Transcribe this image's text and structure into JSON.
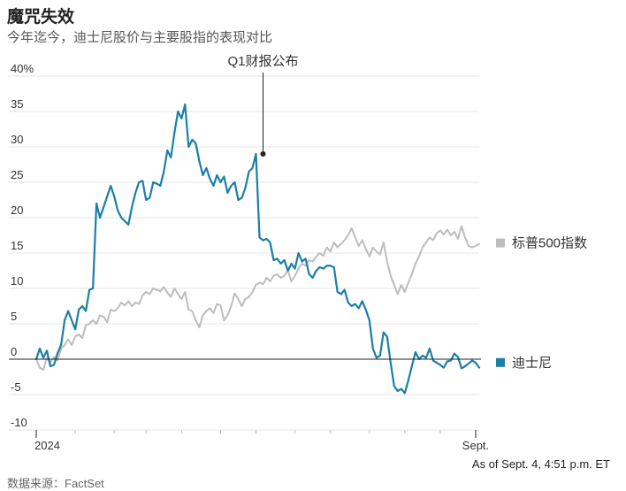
{
  "header": {
    "title": "魔咒失效",
    "subtitle": "今年迄今，迪士尼股价与主要股指的表现对比"
  },
  "footer": {
    "source": "数据来源：FactSet",
    "timestamp": "As of Sept. 4, 4:51 p.m. ET"
  },
  "colors": {
    "disney": "#1b7fa6",
    "sp500": "#bdbdbd",
    "grid": "#e4e4e4",
    "zero": "#222222",
    "annotation": "#222222"
  },
  "chart_data": {
    "type": "line",
    "y_ticks": [
      "40%",
      "35",
      "30",
      "25",
      "20",
      "15",
      "10",
      "5",
      "0",
      "-5",
      "-10"
    ],
    "y_tick_values": [
      40,
      35,
      30,
      25,
      20,
      15,
      10,
      5,
      0,
      -5,
      -10
    ],
    "ylim": [
      -10,
      40
    ],
    "x_tick_labels": [
      "2024",
      "Sept."
    ],
    "x_tick_positions": [
      0,
      124
    ],
    "x_range": [
      0,
      125
    ],
    "grid": true,
    "annotation": {
      "text": "Q1财报公布",
      "x": 64,
      "y": 29
    },
    "series": [
      {
        "name": "标普500指数",
        "legend_label": "标普500指数",
        "color": "#bdbdbd",
        "x": [
          0,
          1,
          2,
          3,
          4,
          5,
          6,
          7,
          8,
          9,
          10,
          11,
          12,
          13,
          14,
          15,
          16,
          17,
          18,
          19,
          20,
          21,
          22,
          23,
          24,
          25,
          26,
          27,
          28,
          29,
          30,
          31,
          32,
          33,
          34,
          35,
          36,
          37,
          38,
          39,
          40,
          41,
          42,
          43,
          44,
          45,
          46,
          47,
          48,
          49,
          50,
          51,
          52,
          53,
          54,
          55,
          56,
          57,
          58,
          59,
          60,
          61,
          62,
          63,
          64,
          65,
          66,
          67,
          68,
          69,
          70,
          71,
          72,
          73,
          74,
          75,
          76,
          77,
          78,
          79,
          80,
          81,
          82,
          83,
          84,
          85,
          86,
          87,
          88,
          89,
          90,
          91,
          92,
          93,
          94,
          95,
          96,
          97,
          98,
          99,
          100,
          101,
          102,
          103,
          104,
          105,
          106,
          107,
          108,
          109,
          110,
          111,
          112,
          113,
          114,
          115,
          116,
          117,
          118,
          119,
          120,
          121,
          122,
          123,
          124,
          125
        ],
        "values": [
          0,
          -1.2,
          -1.5,
          0.2,
          -0.5,
          0.3,
          -0.2,
          1.5,
          2,
          2.8,
          2,
          3.2,
          3.5,
          3,
          4.8,
          5,
          5.5,
          5,
          6.2,
          6,
          5.2,
          7,
          6.8,
          7.2,
          8,
          7.6,
          8.2,
          7.5,
          8,
          7.8,
          9,
          9.5,
          9.2,
          10,
          9.8,
          9.6,
          10.2,
          9.4,
          8.8,
          10,
          9.2,
          8.5,
          9.5,
          7,
          6.8,
          5.5,
          4.5,
          6.2,
          6.8,
          7.2,
          6.5,
          7.8,
          7.6,
          5.5,
          6.2,
          7.5,
          9.3,
          8.5,
          7.5,
          8.5,
          8.8,
          9.5,
          10.5,
          10.8,
          10.6,
          11.5,
          11,
          11.8,
          12,
          11.5,
          11.8,
          12.5,
          11,
          11.8,
          12.8,
          13.5,
          13.2,
          14,
          13.8,
          14.5,
          15,
          14.6,
          15.8,
          15.2,
          16.5,
          15.8,
          16.3,
          16.8,
          17.5,
          18.5,
          17.2,
          16,
          16.8,
          15.6,
          14.5,
          15.8,
          15.2,
          14.8,
          16.5,
          13.8,
          11.8,
          10.5,
          9.2,
          10.5,
          9.5,
          10.8,
          12,
          13.5,
          14.5,
          15.8,
          16.5,
          17.2,
          16.8,
          17.8,
          18.2,
          17.6,
          18.3,
          17.5,
          18,
          17,
          18.8,
          17.2,
          16,
          15.8,
          16,
          16.3
        ]
      },
      {
        "name": "迪士尼",
        "legend_label": "迪士尼",
        "color": "#1b7fa6",
        "x": [
          0,
          1,
          2,
          3,
          4,
          5,
          6,
          7,
          8,
          9,
          10,
          11,
          12,
          13,
          14,
          15,
          16,
          17,
          18,
          19,
          20,
          21,
          22,
          23,
          24,
          25,
          26,
          27,
          28,
          29,
          30,
          31,
          32,
          33,
          34,
          35,
          36,
          37,
          38,
          39,
          40,
          41,
          42,
          43,
          44,
          45,
          46,
          47,
          48,
          49,
          50,
          51,
          52,
          53,
          54,
          55,
          56,
          57,
          58,
          59,
          60,
          61,
          62,
          63,
          64,
          65,
          66,
          67,
          68,
          69,
          70,
          71,
          72,
          73,
          74,
          75,
          76,
          77,
          78,
          79,
          80,
          81,
          82,
          83,
          84,
          85,
          86,
          87,
          88,
          89,
          90,
          91,
          92,
          93,
          94,
          95,
          96,
          97,
          98,
          99,
          100,
          101,
          102,
          103,
          104,
          105,
          106,
          107,
          108,
          109,
          110,
          111,
          112,
          113,
          114,
          115,
          116,
          117,
          118,
          119,
          120,
          121,
          122,
          123,
          124,
          125
        ],
        "values": [
          0,
          1.5,
          0.2,
          1.2,
          -1,
          -0.8,
          0.8,
          2,
          5.5,
          6.8,
          5.5,
          4.2,
          7,
          7.5,
          6.8,
          9.8,
          10,
          22,
          20,
          21.5,
          23,
          24.5,
          23,
          21,
          20,
          19.5,
          19,
          21.5,
          23.5,
          25,
          25.2,
          22.5,
          22.8,
          25,
          24.8,
          24.5,
          26.5,
          29.5,
          28.5,
          32,
          35,
          34,
          36,
          30,
          31,
          30.5,
          28,
          26,
          27,
          25.5,
          24.5,
          26,
          25,
          25.8,
          23.5,
          24.5,
          25,
          22.5,
          22.8,
          24.2,
          26.5,
          27,
          29,
          17.2,
          16.8,
          17,
          16.5,
          14,
          14.2,
          13.5,
          14,
          12.5,
          13.5,
          12.8,
          15,
          13.8,
          14.2,
          12,
          11.5,
          12.5,
          13,
          12.8,
          13.2,
          13.2,
          13,
          9.5,
          9.2,
          9.8,
          8,
          7.5,
          7.8,
          7.2,
          8.2,
          7,
          5.5,
          1.5,
          0.2,
          0.5,
          3.8,
          3.2,
          -0.5,
          -3.8,
          -4.5,
          -4.2,
          -4.8,
          -3,
          -1,
          1,
          0,
          0.5,
          0.2,
          1.5,
          -0.2,
          -0.5,
          -0.8,
          -1.2,
          -0.3,
          -0.2,
          0.8,
          0.3,
          -1.3,
          -1,
          -0.6,
          -0.2,
          -0.5,
          -1.2
        ]
      }
    ]
  }
}
